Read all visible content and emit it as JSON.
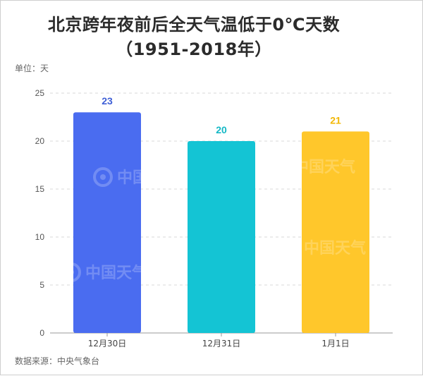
{
  "title_line1": "北京跨年夜前后全天气温低于0℃天数",
  "title_line2": "（1951-2018年）",
  "unit_label": "单位：天",
  "source_label": "数据来源：中央气象台",
  "watermark_text": "中国天气",
  "chart_data": {
    "type": "bar",
    "categories": [
      "12月30日",
      "12月31日",
      "1月1日"
    ],
    "values": [
      23,
      20,
      21
    ],
    "value_labels": [
      "23",
      "20",
      "21"
    ],
    "ylim": [
      0,
      25
    ],
    "yticks": [
      0,
      5,
      10,
      15,
      20,
      25
    ],
    "ytick_labels": [
      "0",
      "5",
      "10",
      "15",
      "20",
      "25"
    ],
    "grid": true,
    "bar_colors": [
      "#4a6cf0",
      "#14c4d4",
      "#ffc72b"
    ],
    "value_label_colors": [
      "#3f5fd6",
      "#14b8c6",
      "#f2b705"
    ],
    "xlabel": "",
    "ylabel": "",
    "title": "北京跨年夜前后全天气温低于0℃天数"
  }
}
